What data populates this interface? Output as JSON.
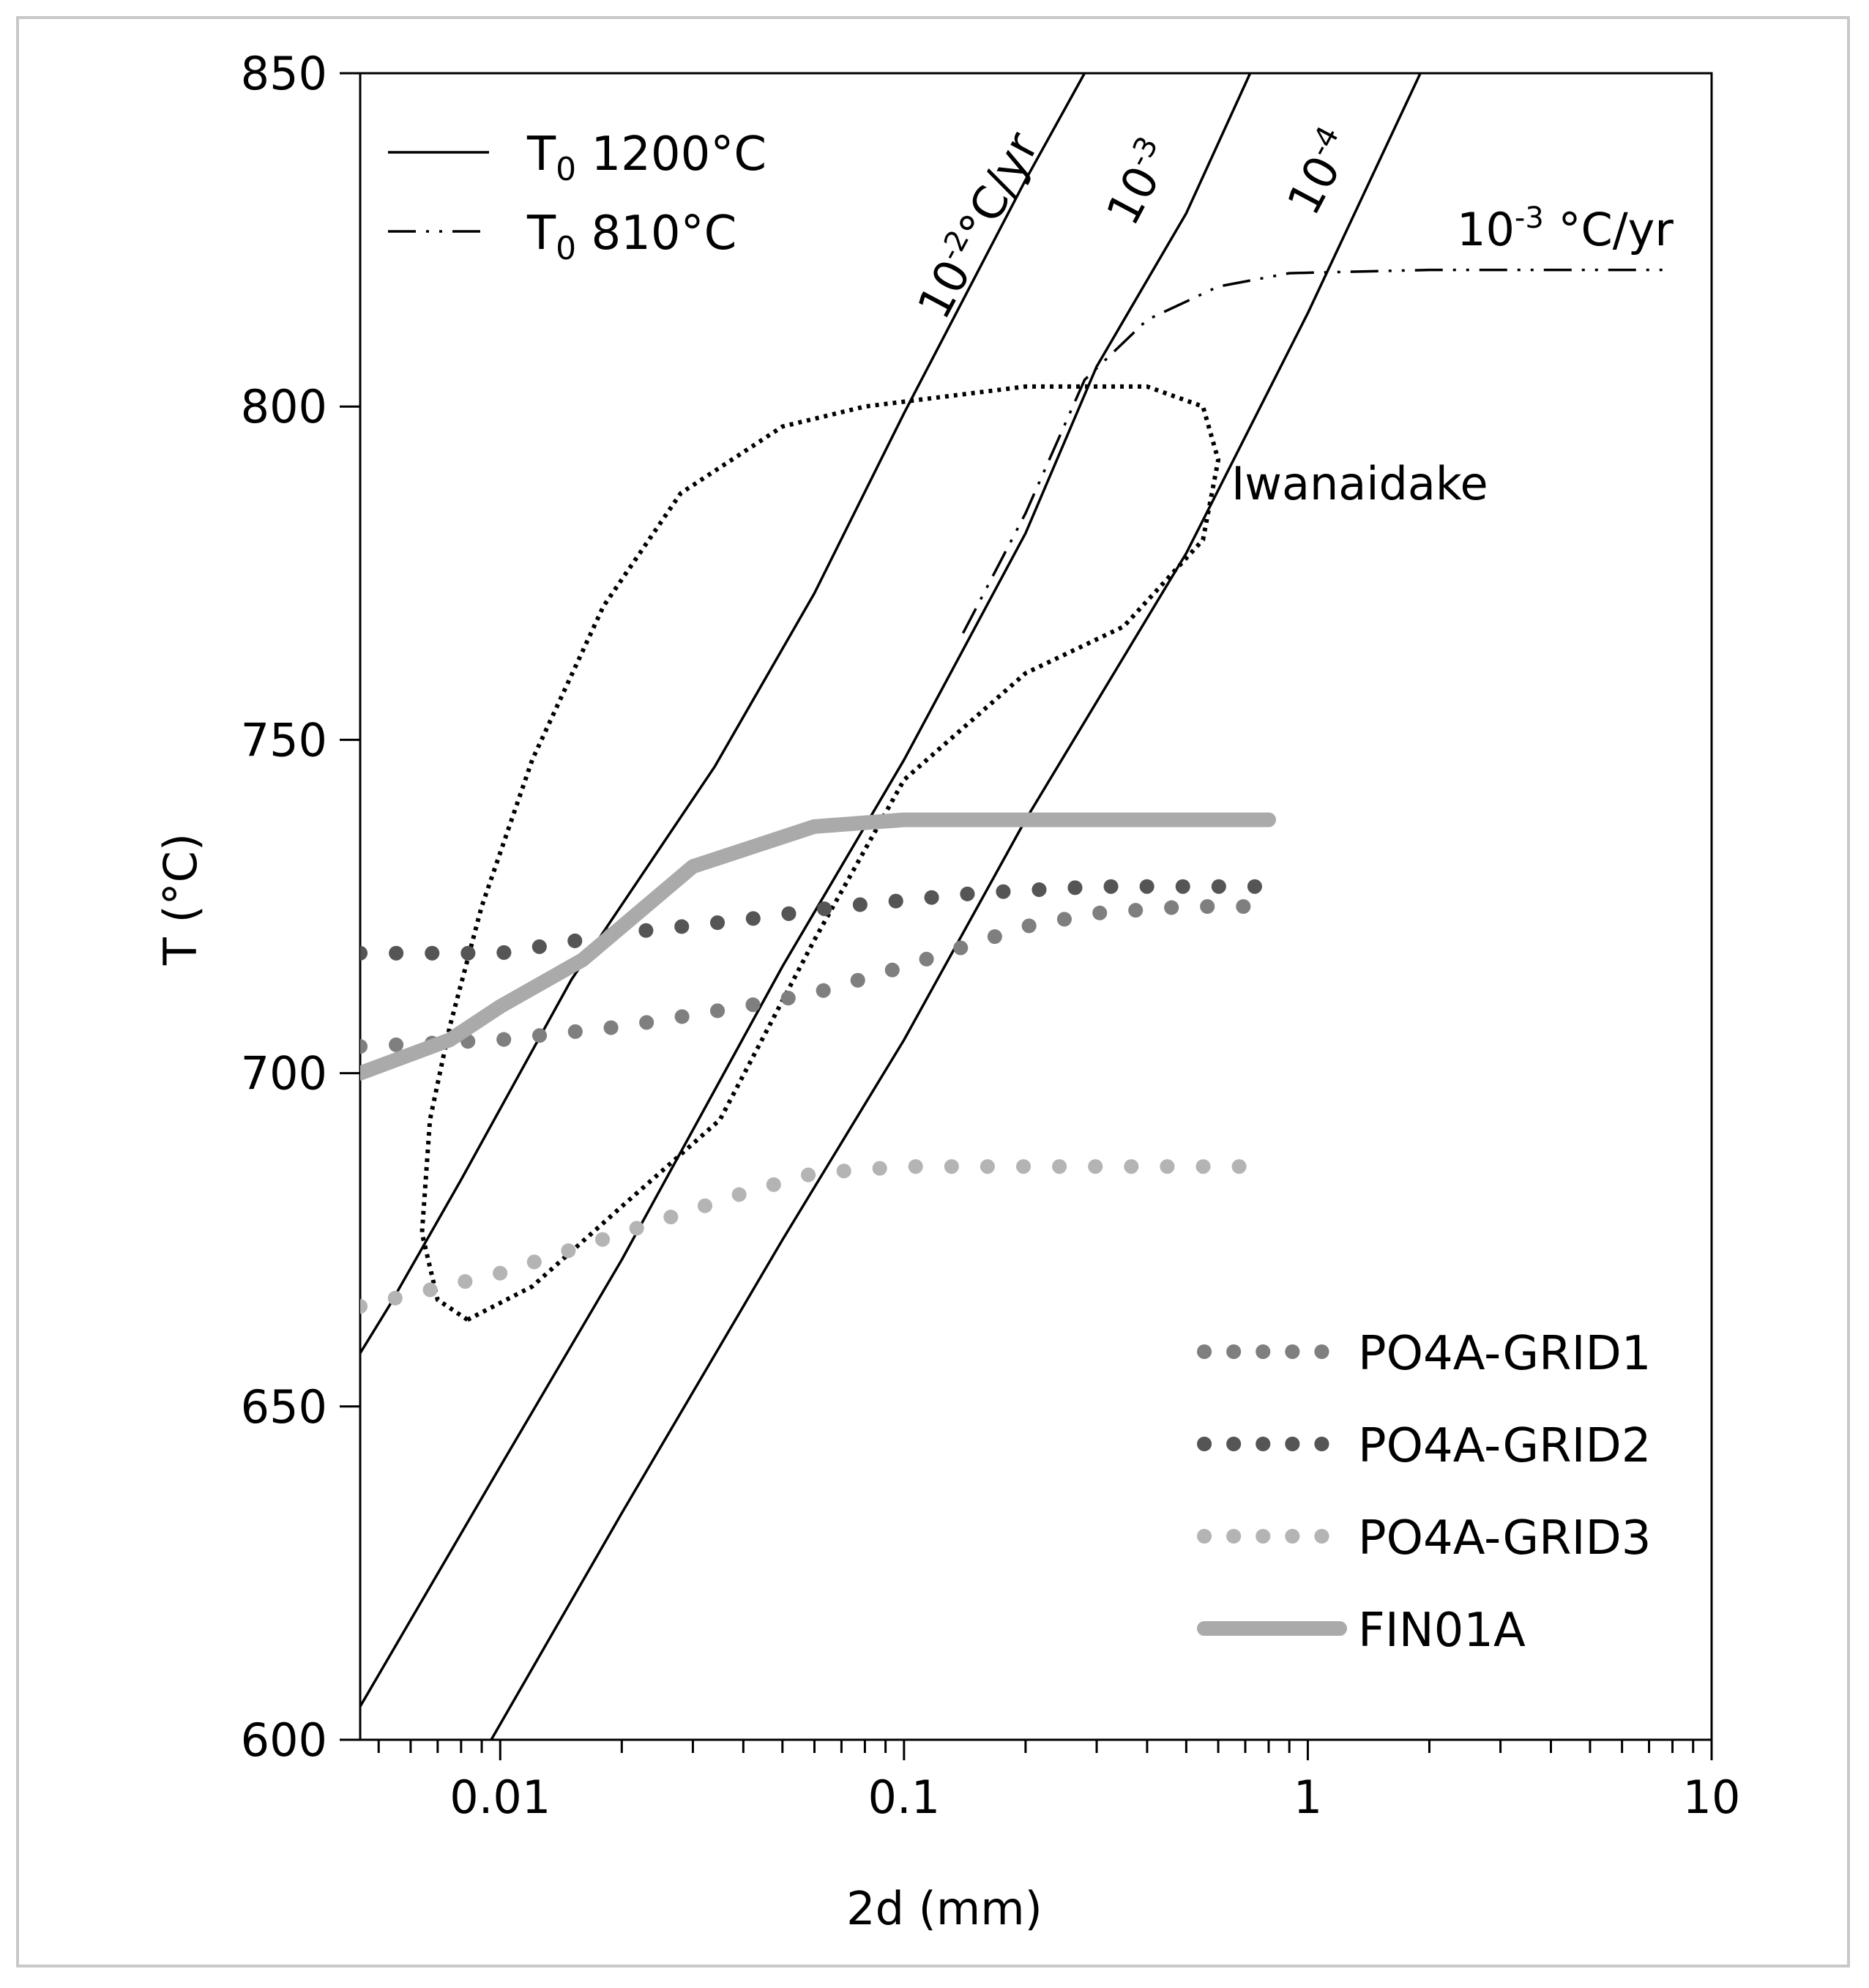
{
  "chart_data": {
    "type": "line",
    "xlabel": "2d (mm)",
    "ylabel": "T (°C)",
    "x_scale": "log",
    "xlim": [
      0.0045,
      10
    ],
    "ylim": [
      600,
      850
    ],
    "x_ticks": [
      {
        "value": 0.01,
        "label": "0.01"
      },
      {
        "value": 0.1,
        "label": "0.1"
      },
      {
        "value": 1,
        "label": "1"
      },
      {
        "value": 10,
        "label": "10"
      }
    ],
    "y_ticks": [
      {
        "value": 600,
        "label": "600"
      },
      {
        "value": 650,
        "label": "650"
      },
      {
        "value": 700,
        "label": "700"
      },
      {
        "value": 750,
        "label": "750"
      },
      {
        "value": 800,
        "label": "800"
      },
      {
        "value": 850,
        "label": "850"
      }
    ],
    "grid": false,
    "legend_top_left": [
      {
        "style": "solid",
        "label_main": "T",
        "label_sub": "0",
        "label_rest": " 1200°C"
      },
      {
        "style": "dash-dot-dot",
        "label_main": "T",
        "label_sub": "0",
        "label_rest": " 810°C"
      }
    ],
    "legend_bottom_right": [
      {
        "series": "PO4A-GRID1",
        "color": "#7f7f7f",
        "style": "dots"
      },
      {
        "series": "PO4A-GRID2",
        "color": "#555555",
        "style": "dots"
      },
      {
        "series": "PO4A-GRID3",
        "color": "#b4b4b4",
        "style": "dots"
      },
      {
        "series": "FIN01A",
        "color": "#aaaaaa",
        "style": "thick"
      }
    ],
    "annotations": {
      "rate_1e2": {
        "base": "10",
        "sup": "-2",
        "rest": "°C/yr"
      },
      "rate_1e3": {
        "base": "10",
        "sup": "-3"
      },
      "rate_1e4": {
        "base": "10",
        "sup": "-4"
      },
      "rate_810": {
        "base": "10",
        "sup": "-3",
        "rest": " °C/yr"
      },
      "region": "Iwanaidake"
    },
    "series": [
      {
        "name": "10-2 °C/yr",
        "style": "solid",
        "color": "#000000",
        "points": [
          [
            0.0045,
            658
          ],
          [
            0.0053,
            665
          ],
          [
            0.008,
            684
          ],
          [
            0.015,
            714
          ],
          [
            0.034,
            746
          ],
          [
            0.06,
            772
          ],
          [
            0.1,
            799
          ],
          [
            0.2,
            834
          ],
          [
            0.28,
            850
          ]
        ]
      },
      {
        "name": "10-3",
        "style": "solid",
        "color": "#000000",
        "points": [
          [
            0.0045,
            605
          ],
          [
            0.01,
            641
          ],
          [
            0.02,
            672
          ],
          [
            0.05,
            716
          ],
          [
            0.1,
            747
          ],
          [
            0.2,
            781
          ],
          [
            0.3,
            806
          ],
          [
            0.5,
            829
          ],
          [
            0.72,
            850
          ]
        ]
      },
      {
        "name": "10-4",
        "style": "solid",
        "color": "#000000",
        "points": [
          [
            0.0095,
            600
          ],
          [
            0.02,
            634
          ],
          [
            0.05,
            675
          ],
          [
            0.1,
            705
          ],
          [
            0.2,
            738
          ],
          [
            0.5,
            778
          ],
          [
            1.0,
            814
          ],
          [
            1.9,
            850
          ]
        ]
      },
      {
        "name": "10-3 °C/yr (T0 810°C)",
        "style": "dash-dot-dot",
        "color": "#000000",
        "points": [
          [
            0.14,
            766
          ],
          [
            0.2,
            784
          ],
          [
            0.28,
            804
          ],
          [
            0.4,
            813
          ],
          [
            0.6,
            818
          ],
          [
            0.9,
            820
          ],
          [
            2,
            820.5
          ],
          [
            8,
            820.5
          ]
        ]
      },
      {
        "name": "Iwanaidake",
        "style": "dotted",
        "color": "#000000",
        "closed": true,
        "points": [
          [
            0.0083,
            663
          ],
          [
            0.007,
            666
          ],
          [
            0.0064,
            676
          ],
          [
            0.0067,
            693
          ],
          [
            0.0075,
            707
          ],
          [
            0.009,
            725
          ],
          [
            0.012,
            747
          ],
          [
            0.018,
            770
          ],
          [
            0.028,
            787
          ],
          [
            0.05,
            797
          ],
          [
            0.08,
            800
          ],
          [
            0.2,
            803
          ],
          [
            0.4,
            803
          ],
          [
            0.55,
            800
          ],
          [
            0.6,
            792
          ],
          [
            0.55,
            780
          ],
          [
            0.35,
            767
          ],
          [
            0.2,
            760
          ],
          [
            0.1,
            744
          ],
          [
            0.06,
            720
          ],
          [
            0.035,
            693
          ],
          [
            0.02,
            680
          ],
          [
            0.012,
            668
          ],
          [
            0.0083,
            663
          ]
        ]
      },
      {
        "name": "PO4A-GRID1",
        "style": "dots",
        "color": "#7f7f7f",
        "points": [
          [
            0.0045,
            704
          ],
          [
            0.01,
            705
          ],
          [
            0.02,
            707
          ],
          [
            0.04,
            710
          ],
          [
            0.06,
            712
          ],
          [
            0.1,
            716
          ],
          [
            0.2,
            722
          ],
          [
            0.3,
            724
          ],
          [
            0.5,
            725
          ],
          [
            0.75,
            725
          ]
        ]
      },
      {
        "name": "PO4A-GRID2",
        "style": "dots",
        "color": "#555555",
        "points": [
          [
            0.0045,
            718
          ],
          [
            0.01,
            718
          ],
          [
            0.02,
            721
          ],
          [
            0.04,
            723
          ],
          [
            0.07,
            725
          ],
          [
            0.15,
            727
          ],
          [
            0.3,
            728
          ],
          [
            0.75,
            728
          ]
        ]
      },
      {
        "name": "PO4A-GRID3",
        "style": "dots",
        "color": "#b4b4b4",
        "points": [
          [
            0.0045,
            665
          ],
          [
            0.01,
            670
          ],
          [
            0.02,
            676
          ],
          [
            0.04,
            682
          ],
          [
            0.06,
            685
          ],
          [
            0.1,
            686
          ],
          [
            0.2,
            686
          ],
          [
            0.75,
            686
          ]
        ]
      },
      {
        "name": "FIN01A",
        "style": "thick",
        "color": "#aaaaaa",
        "points": [
          [
            0.0045,
            700
          ],
          [
            0.0075,
            705
          ],
          [
            0.01,
            710
          ],
          [
            0.016,
            717
          ],
          [
            0.03,
            731
          ],
          [
            0.06,
            737
          ],
          [
            0.1,
            738
          ],
          [
            0.3,
            738
          ],
          [
            0.8,
            738
          ]
        ]
      }
    ]
  }
}
